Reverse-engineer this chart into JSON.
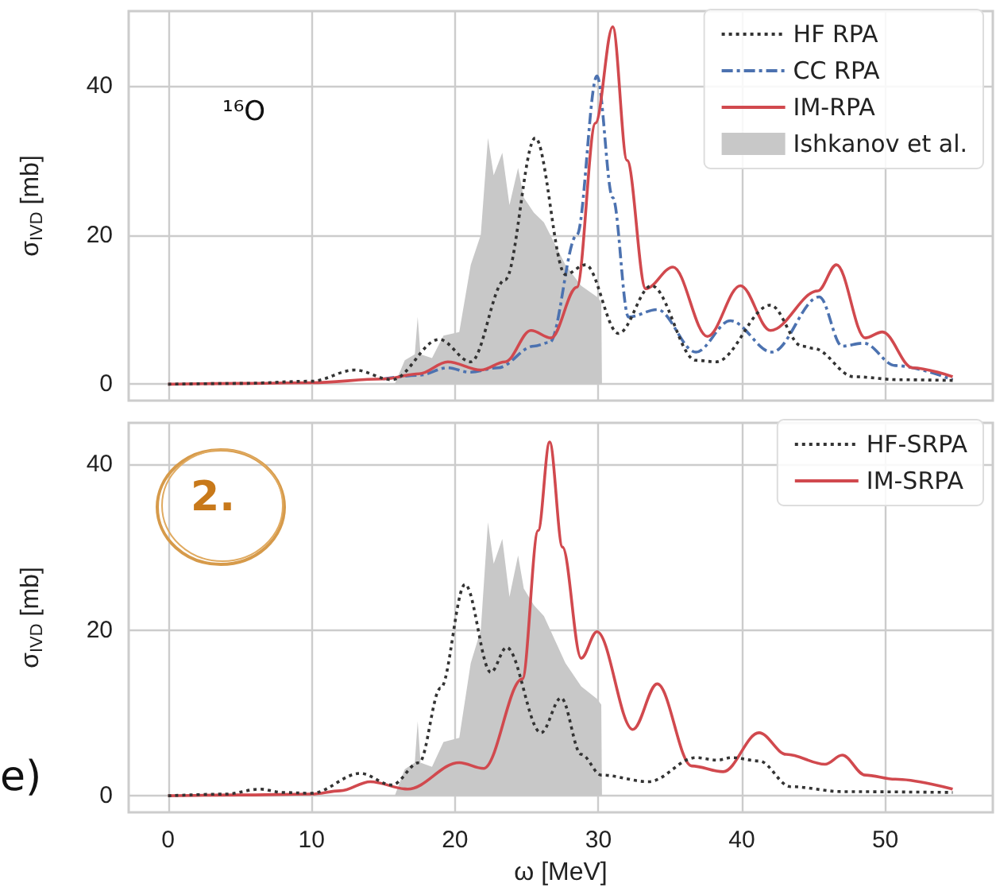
{
  "chart_data": [
    {
      "type": "line",
      "ylabel": "σ$_{IVD}$ [mb]",
      "annotations": [
        "¹⁶O"
      ],
      "xlim": [
        -2.75,
        57.5
      ],
      "ylim": [
        -2.2,
        50
      ],
      "xticks": [
        0,
        10,
        20,
        30,
        40,
        50
      ],
      "yticks": [
        0,
        20,
        40
      ],
      "tick_labels": "y",
      "grid": true,
      "legend": "top right",
      "marker": "none",
      "series": [
        {
          "name": "HF RPA",
          "color": "#333333",
          "line_style": "dotted",
          "x": [
            0,
            5,
            10,
            13,
            15.6,
            18.9,
            21.1,
            23.5,
            25.6,
            27.7,
            29.1,
            31.4,
            33.7,
            36.8,
            38.2,
            42,
            44.2,
            45,
            47.8,
            51,
            54.7
          ],
          "values": [
            0,
            0.1,
            0.4,
            1.9,
            0.6,
            6,
            3,
            14,
            33,
            14.7,
            16,
            6.8,
            13.2,
            3.2,
            3,
            10.6,
            5.1,
            4.8,
            1,
            0.6,
            0.5
          ]
        },
        {
          "name": "CC RPA",
          "color": "#4c72b0",
          "line_style": "dashdot",
          "x": [
            15,
            17.5,
            19.5,
            21,
            23,
            25.5,
            26.6,
            28.5,
            29.9,
            31,
            32.1,
            34.1,
            36.8,
            39.2,
            42.1,
            45.4,
            47,
            48.5,
            50.7,
            54.7
          ],
          "values": [
            0.7,
            1.2,
            2.2,
            1.6,
            2.2,
            5.1,
            5.6,
            20,
            41.3,
            25,
            9,
            10,
            4.3,
            8.5,
            4.3,
            11.7,
            5.1,
            5.5,
            2.5,
            0.6
          ]
        },
        {
          "name": "IM-RPA",
          "color": "#d1494e",
          "line_style": "solid",
          "x": [
            0,
            5,
            10,
            15,
            17.5,
            19.5,
            21.8,
            23.5,
            25.3,
            26.7,
            28.5,
            29.8,
            31,
            32,
            33.3,
            35.2,
            37.6,
            39.9,
            42,
            45.3,
            46.6,
            48.6,
            49.8,
            51.9,
            54.7
          ],
          "values": [
            0,
            0.1,
            0.2,
            0.7,
            1.4,
            3,
            1.9,
            3,
            7.2,
            6.2,
            13,
            35,
            47.9,
            30,
            12.8,
            15.7,
            6.4,
            13.2,
            7.2,
            12.5,
            16,
            6.2,
            7,
            2.2,
            1
          ]
        },
        {
          "name": "Ishkanov et al.",
          "type": "area",
          "color": "#c8c8c8",
          "x": [
            15.8,
            16.5,
            17.2,
            17.4,
            17.6,
            18.4,
            19.2,
            20.3,
            21.1,
            21.8,
            22.3,
            22.7,
            23.3,
            23.8,
            24.4,
            24.8,
            25.5,
            26.2,
            27.7,
            28.8,
            29.9,
            30.2,
            30.25
          ],
          "values": [
            0,
            3.2,
            4,
            9,
            4,
            3.5,
            6.5,
            7,
            16,
            20,
            33,
            28,
            31,
            24,
            29,
            25,
            23,
            21.7,
            16,
            13.2,
            11.7,
            11,
            0
          ]
        }
      ]
    },
    {
      "type": "line",
      "xlabel": "ω [MeV]",
      "ylabel": "σ$_{IVD}$ [mb]",
      "annotations": [
        "2.",
        "e)"
      ],
      "xlim": [
        -2.75,
        57.5
      ],
      "ylim": [
        -2,
        45
      ],
      "xticks": [
        0,
        10,
        20,
        30,
        40,
        50
      ],
      "yticks": [
        0,
        20,
        40
      ],
      "grid": true,
      "legend": "top right",
      "marker": "none",
      "series": [
        {
          "name": "HF-SRPA",
          "color": "#333333",
          "line_style": "dotted",
          "x": [
            0,
            4,
            6.4,
            8,
            10,
            13.4,
            15.6,
            17.5,
            19,
            20.7,
            22.5,
            23.6,
            26,
            27.4,
            28.8,
            30.2,
            33.5,
            36.8,
            38.3,
            39.3,
            41.2,
            43.4,
            47,
            54.7
          ],
          "values": [
            0,
            0.2,
            0.8,
            0.4,
            0.3,
            2.7,
            1.3,
            4,
            13,
            25.5,
            14.9,
            17.9,
            7.6,
            11.8,
            5,
            2.5,
            1.7,
            4.6,
            4.3,
            4.6,
            4.2,
            1.1,
            0.5,
            0.4
          ]
        },
        {
          "name": "IM-SRPA",
          "color": "#d1494e",
          "line_style": "solid",
          "x": [
            0,
            5,
            10,
            12,
            14.1,
            16.7,
            20.3,
            22,
            24.7,
            25.8,
            26.6,
            27.5,
            28.8,
            29.9,
            32.4,
            34.1,
            36.5,
            38.7,
            41.2,
            43.1,
            45.8,
            47,
            48.6,
            50.7,
            54.7
          ],
          "values": [
            0,
            0.1,
            0.2,
            0.6,
            1.7,
            0.8,
            4,
            3.3,
            14.1,
            32,
            42.7,
            30,
            16.6,
            19.8,
            8,
            13.5,
            3.6,
            2.9,
            7.6,
            5,
            3.8,
            4.9,
            2.5,
            2,
            0.8
          ]
        },
        {
          "type": "area",
          "color": "#c8c8c8",
          "x": [
            15.8,
            16.5,
            17.2,
            17.4,
            17.6,
            18.4,
            19.2,
            20.3,
            21.1,
            21.8,
            22.3,
            22.7,
            23.3,
            23.8,
            24.4,
            24.8,
            25.5,
            26.2,
            27.7,
            28.8,
            29.9,
            30.2,
            30.25
          ],
          "values": [
            0,
            3.2,
            4,
            9,
            4,
            3.5,
            6.5,
            7,
            16,
            20,
            33,
            28,
            31,
            24,
            29,
            25,
            23,
            21.7,
            16,
            13.2,
            11.7,
            11,
            0
          ]
        }
      ]
    }
  ]
}
